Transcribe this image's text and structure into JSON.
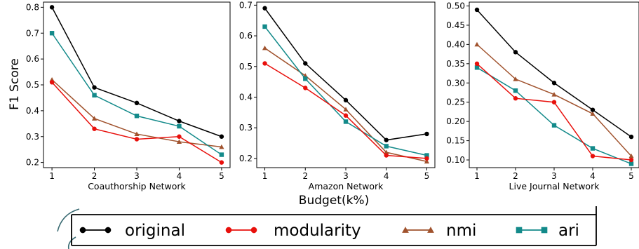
{
  "figure": {
    "ylabel": "F1 Score",
    "xlabel": "Budget(k%)"
  },
  "colors": {
    "original": "#000000",
    "modularity": "#e8100c",
    "nmi": "#a0522d",
    "ari": "#138a8a"
  },
  "chart_data": [
    {
      "type": "line",
      "title": "",
      "xlabel": "Coauthorship Network",
      "ylabel": "F1 Score",
      "x": [
        1,
        2,
        3,
        4,
        5
      ],
      "ylim": [
        0.18,
        0.82
      ],
      "yticks": [
        0.2,
        0.3,
        0.4,
        0.5,
        0.6,
        0.7,
        0.8
      ],
      "ytick_labels": [
        "0.2",
        "0.3",
        "0.4",
        "0.5",
        "0.6",
        "0.7",
        "0.8"
      ],
      "series": [
        {
          "name": "original",
          "values": [
            0.8,
            0.49,
            0.43,
            0.36,
            0.3
          ]
        },
        {
          "name": "modularity",
          "values": [
            0.51,
            0.33,
            0.29,
            0.3,
            0.2
          ]
        },
        {
          "name": "nmi",
          "values": [
            0.52,
            0.37,
            0.31,
            0.28,
            0.26
          ]
        },
        {
          "name": "ari",
          "values": [
            0.7,
            0.46,
            0.38,
            0.34,
            0.23
          ]
        }
      ]
    },
    {
      "type": "line",
      "title": "",
      "xlabel": "Amazon Network",
      "ylabel": "",
      "x": [
        1,
        2,
        3,
        4,
        5
      ],
      "ylim": [
        0.17,
        0.71
      ],
      "yticks": [
        0.2,
        0.3,
        0.4,
        0.5,
        0.6,
        0.7
      ],
      "ytick_labels": [
        "0.2",
        "0.3",
        "0.4",
        "0.5",
        "0.6",
        "0.7"
      ],
      "series": [
        {
          "name": "original",
          "values": [
            0.69,
            0.51,
            0.39,
            0.26,
            0.28
          ]
        },
        {
          "name": "modularity",
          "values": [
            0.51,
            0.43,
            0.34,
            0.21,
            0.2
          ]
        },
        {
          "name": "nmi",
          "values": [
            0.56,
            0.47,
            0.36,
            0.22,
            0.19
          ]
        },
        {
          "name": "ari",
          "values": [
            0.63,
            0.46,
            0.32,
            0.24,
            0.21
          ]
        }
      ]
    },
    {
      "type": "line",
      "title": "",
      "xlabel": "Live Journal Network",
      "ylabel": "",
      "x": [
        1,
        2,
        3,
        4,
        5
      ],
      "ylim": [
        0.08,
        0.51
      ],
      "yticks": [
        0.1,
        0.15,
        0.2,
        0.25,
        0.3,
        0.35,
        0.4,
        0.45,
        0.5
      ],
      "ytick_labels": [
        "0.10",
        "0.15",
        "0.20",
        "0.25",
        "0.30",
        "0.35",
        "0.40",
        "0.45",
        "0.50"
      ],
      "series": [
        {
          "name": "original",
          "values": [
            0.49,
            0.38,
            0.3,
            0.23,
            0.16
          ]
        },
        {
          "name": "modularity",
          "values": [
            0.35,
            0.26,
            0.25,
            0.11,
            0.1
          ]
        },
        {
          "name": "nmi",
          "values": [
            0.4,
            0.31,
            0.27,
            0.22,
            0.11
          ]
        },
        {
          "name": "ari",
          "values": [
            0.34,
            0.28,
            0.19,
            0.13,
            0.09
          ]
        }
      ]
    }
  ],
  "legend": {
    "items": [
      {
        "key": "original",
        "label": "original",
        "marker": "circle"
      },
      {
        "key": "modularity",
        "label": "modularity",
        "marker": "circle"
      },
      {
        "key": "nmi",
        "label": "nmi",
        "marker": "triangle"
      },
      {
        "key": "ari",
        "label": "ari",
        "marker": "square"
      }
    ]
  }
}
